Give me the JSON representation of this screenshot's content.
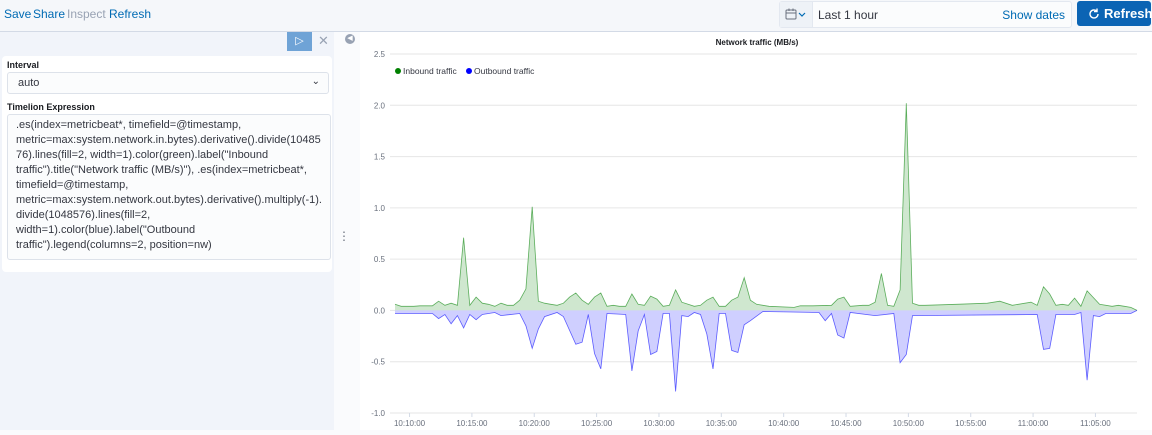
{
  "toolbar": {
    "save": "Save",
    "share": "Share",
    "inspect": "Inspect",
    "refresh": "Refresh"
  },
  "datepicker": {
    "icon": "calendar-icon",
    "value": "Last 1 hour",
    "show_dates": "Show dates",
    "refresh_button": "Refresh"
  },
  "editor": {
    "run_icon": "play-icon",
    "close_icon": "close-icon",
    "interval_label": "Interval",
    "interval_value": "auto",
    "expression_label": "Timelion Expression",
    "expression": ".es(index=metricbeat*, timefield=@timestamp, metric=max:system.network.in.bytes).derivative().divide(1048576).lines(fill=2, width=1).color(green).label(\"Inbound traffic\").title(\"Network traffic (MB/s)\"), .es(index=metricbeat*, timefield=@timestamp, metric=max:system.network.out.bytes).derivative().multiply(-1).divide(1048576).lines(fill=2, width=1).color(blue).label(\"Outbound traffic\").legend(columns=2, position=nw)"
  },
  "chart_data": {
    "type": "area",
    "title": "Network traffic (MB/s)",
    "xlabel": "",
    "ylabel": "",
    "xlim": [
      "10:08:50",
      "11:08:20"
    ],
    "ylim": [
      -1.0,
      2.5
    ],
    "yticks": [
      "2.5",
      "2.0",
      "1.5",
      "1.0",
      "0.5",
      "0.0",
      "-0.5",
      "-1.0"
    ],
    "xticks": [
      "10:10:00",
      "10:15:00",
      "10:20:00",
      "10:25:00",
      "10:30:00",
      "10:35:00",
      "10:40:00",
      "10:45:00",
      "10:50:00",
      "10:55:00",
      "11:00:00",
      "11:05:00"
    ],
    "grid": true,
    "legend_position": "top-left",
    "series": [
      {
        "name": "Inbound traffic",
        "color": "#008000",
        "fill": "#cce6cc",
        "points": [
          [
            "10:08:50",
            0.06
          ],
          [
            "10:09:20",
            0.04
          ],
          [
            "10:10:20",
            0.04
          ],
          [
            "10:10:50",
            0.045
          ],
          [
            "10:11:50",
            0.045
          ],
          [
            "10:12:20",
            0.09
          ],
          [
            "10:12:50",
            0.05
          ],
          [
            "10:13:20",
            0.07
          ],
          [
            "10:13:50",
            0.05
          ],
          [
            "10:14:20",
            0.71
          ],
          [
            "10:14:50",
            0.05
          ],
          [
            "10:15:20",
            0.13
          ],
          [
            "10:15:50",
            0.07
          ],
          [
            "10:16:20",
            0.06
          ],
          [
            "10:16:50",
            0.04
          ],
          [
            "10:17:20",
            0.07
          ],
          [
            "10:17:50",
            0.05
          ],
          [
            "10:18:20",
            0.05
          ],
          [
            "10:18:50",
            0.1
          ],
          [
            "10:19:20",
            0.21
          ],
          [
            "10:19:50",
            1.01
          ],
          [
            "10:20:20",
            0.09
          ],
          [
            "10:20:50",
            0.07
          ],
          [
            "10:21:20",
            0.06
          ],
          [
            "10:21:50",
            0.05
          ],
          [
            "10:22:20",
            0.07
          ],
          [
            "10:22:50",
            0.13
          ],
          [
            "10:23:20",
            0.17
          ],
          [
            "10:23:50",
            0.1
          ],
          [
            "10:24:20",
            0.06
          ],
          [
            "10:24:50",
            0.13
          ],
          [
            "10:25:20",
            0.17
          ],
          [
            "10:25:50",
            0.04
          ],
          [
            "10:26:20",
            0.05
          ],
          [
            "10:26:50",
            0.04
          ],
          [
            "10:27:20",
            0.04
          ],
          [
            "10:27:50",
            0.16
          ],
          [
            "10:28:20",
            0.06
          ],
          [
            "10:28:50",
            0.05
          ],
          [
            "10:29:20",
            0.14
          ],
          [
            "10:29:50",
            0.11
          ],
          [
            "10:30:20",
            0.04
          ],
          [
            "10:30:50",
            0.05
          ],
          [
            "10:31:20",
            0.2
          ],
          [
            "10:31:50",
            0.08
          ],
          [
            "10:32:20",
            0.06
          ],
          [
            "10:32:50",
            0.04
          ],
          [
            "10:33:20",
            0.05
          ],
          [
            "10:33:50",
            0.1
          ],
          [
            "10:34:20",
            0.13
          ],
          [
            "10:34:50",
            0.04
          ],
          [
            "10:35:20",
            0.04
          ],
          [
            "10:35:50",
            0.1
          ],
          [
            "10:36:20",
            0.13
          ],
          [
            "10:36:50",
            0.32
          ],
          [
            "10:37:20",
            0.1
          ],
          [
            "10:37:50",
            0.06
          ],
          [
            "10:38:50",
            0.04
          ],
          [
            "10:40:50",
            0.03
          ],
          [
            "10:41:20",
            0.045
          ],
          [
            "10:42:20",
            0.045
          ],
          [
            "10:43:50",
            0.05
          ],
          [
            "10:44:20",
            0.11
          ],
          [
            "10:44:50",
            0.13
          ],
          [
            "10:45:20",
            0.04
          ],
          [
            "10:46:20",
            0.05
          ],
          [
            "10:46:50",
            0.05
          ],
          [
            "10:47:20",
            0.08
          ],
          [
            "10:47:50",
            0.36
          ],
          [
            "10:48:20",
            0.05
          ],
          [
            "10:48:50",
            0.04
          ],
          [
            "10:49:20",
            0.2
          ],
          [
            "10:49:50",
            2.02
          ],
          [
            "10:50:20",
            0.07
          ],
          [
            "10:50:50",
            0.05
          ],
          [
            "10:51:20",
            0.05
          ],
          [
            "10:53:50",
            0.06
          ],
          [
            "10:56:20",
            0.07
          ],
          [
            "10:57:20",
            0.09
          ],
          [
            "10:58:20",
            0.05
          ],
          [
            "10:59:50",
            0.08
          ],
          [
            "11:00:20",
            0.05
          ],
          [
            "11:00:50",
            0.23
          ],
          [
            "11:01:20",
            0.16
          ],
          [
            "11:01:50",
            0.05
          ],
          [
            "11:02:20",
            0.06
          ],
          [
            "11:02:50",
            0.05
          ],
          [
            "11:03:20",
            0.12
          ],
          [
            "11:03:50",
            0.04
          ],
          [
            "11:04:20",
            0.19
          ],
          [
            "11:05:20",
            0.06
          ],
          [
            "11:06:20",
            0.04
          ],
          [
            "11:06:50",
            0.05
          ],
          [
            "11:07:20",
            0.04
          ],
          [
            "11:07:50",
            0.03
          ],
          [
            "11:08:20",
            0.0
          ]
        ]
      },
      {
        "name": "Outbound traffic",
        "color": "#0000ff",
        "fill": "#ccccff",
        "points": [
          [
            "10:08:50",
            -0.03
          ],
          [
            "10:11:50",
            -0.03
          ],
          [
            "10:12:20",
            -0.08
          ],
          [
            "10:12:50",
            -0.04
          ],
          [
            "10:13:20",
            -0.13
          ],
          [
            "10:13:50",
            -0.05
          ],
          [
            "10:14:20",
            -0.17
          ],
          [
            "10:14:50",
            -0.04
          ],
          [
            "10:15:20",
            -0.09
          ],
          [
            "10:15:50",
            -0.04
          ],
          [
            "10:16:50",
            -0.02
          ],
          [
            "10:17:20",
            -0.05
          ],
          [
            "10:18:50",
            -0.03
          ],
          [
            "10:19:20",
            -0.15
          ],
          [
            "10:19:50",
            -0.37
          ],
          [
            "10:20:20",
            -0.18
          ],
          [
            "10:20:50",
            -0.06
          ],
          [
            "10:21:50",
            -0.02
          ],
          [
            "10:22:20",
            -0.06
          ],
          [
            "10:23:20",
            -0.33
          ],
          [
            "10:23:50",
            -0.31
          ],
          [
            "10:24:20",
            -0.04
          ],
          [
            "10:24:50",
            -0.42
          ],
          [
            "10:25:20",
            -0.57
          ],
          [
            "10:25:50",
            -0.03
          ],
          [
            "10:27:20",
            -0.04
          ],
          [
            "10:27:50",
            -0.59
          ],
          [
            "10:28:20",
            -0.2
          ],
          [
            "10:28:50",
            -0.04
          ],
          [
            "10:29:20",
            -0.43
          ],
          [
            "10:29:50",
            -0.4
          ],
          [
            "10:30:20",
            -0.03
          ],
          [
            "10:30:50",
            -0.03
          ],
          [
            "10:31:20",
            -0.79
          ],
          [
            "10:31:50",
            -0.05
          ],
          [
            "10:32:20",
            -0.06
          ],
          [
            "10:32:50",
            -0.02
          ],
          [
            "10:33:20",
            -0.04
          ],
          [
            "10:33:50",
            -0.23
          ],
          [
            "10:34:20",
            -0.57
          ],
          [
            "10:34:50",
            -0.03
          ],
          [
            "10:35:20",
            -0.03
          ],
          [
            "10:35:50",
            -0.39
          ],
          [
            "10:36:20",
            -0.41
          ],
          [
            "10:36:50",
            -0.14
          ],
          [
            "10:37:20",
            -0.1
          ],
          [
            "10:38:20",
            -0.01
          ],
          [
            "10:42:50",
            -0.02
          ],
          [
            "10:43:20",
            -0.1
          ],
          [
            "10:43:50",
            -0.03
          ],
          [
            "10:44:20",
            -0.24
          ],
          [
            "10:44:50",
            -0.27
          ],
          [
            "10:45:20",
            -0.02
          ],
          [
            "10:47:20",
            -0.05
          ],
          [
            "10:48:50",
            -0.03
          ],
          [
            "10:49:20",
            -0.51
          ],
          [
            "10:49:50",
            -0.43
          ],
          [
            "10:50:20",
            -0.05
          ],
          [
            "11:00:20",
            -0.04
          ],
          [
            "11:00:50",
            -0.38
          ],
          [
            "11:01:20",
            -0.37
          ],
          [
            "11:01:50",
            -0.04
          ],
          [
            "11:03:20",
            -0.04
          ],
          [
            "11:03:50",
            -0.02
          ],
          [
            "11:04:20",
            -0.68
          ],
          [
            "11:04:50",
            -0.05
          ],
          [
            "11:05:20",
            -0.06
          ],
          [
            "11:05:50",
            -0.03
          ],
          [
            "11:07:50",
            -0.03
          ],
          [
            "11:08:20",
            0.0
          ]
        ]
      }
    ]
  }
}
